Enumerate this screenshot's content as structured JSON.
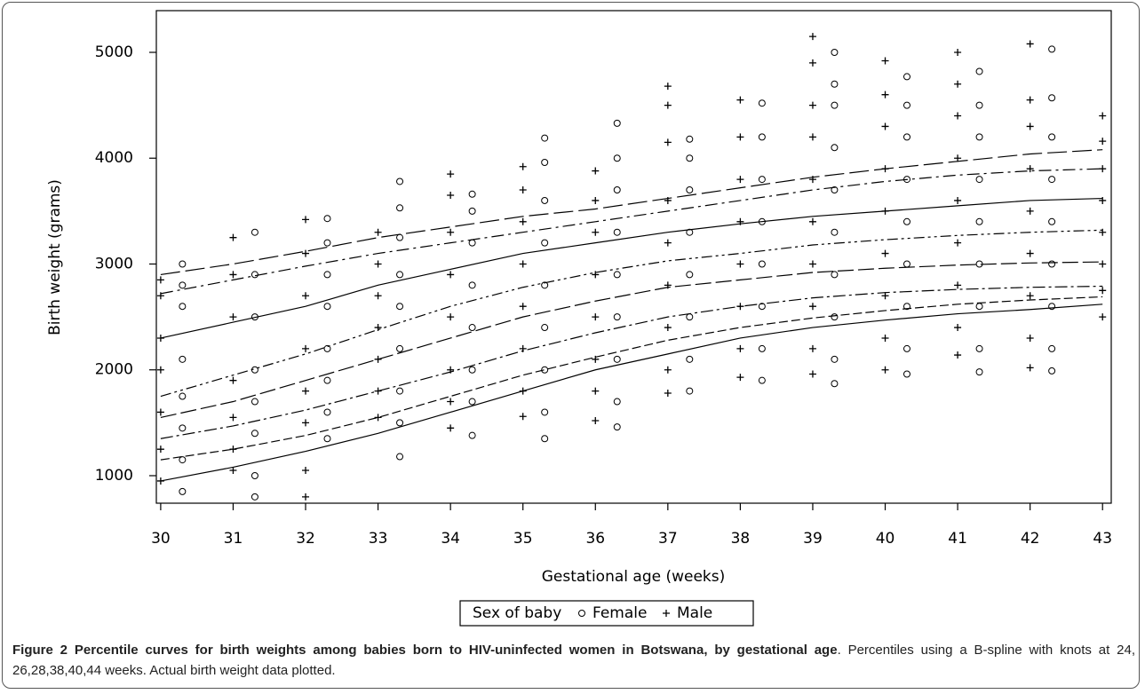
{
  "chart_data": {
    "type": "scatter",
    "y_label": "Birth weight (grams)",
    "x_label": "Gestational age (weeks)",
    "xlim": [
      29.94,
      43.12
    ],
    "ylim": [
      740,
      5394
    ],
    "xticks": [
      30,
      31,
      32,
      33,
      34,
      35,
      36,
      37,
      38,
      39,
      40,
      41,
      42,
      43
    ],
    "yticks": [
      1000,
      2000,
      3000,
      4000,
      5000
    ],
    "legend_title": "Sex of baby",
    "series": [
      {
        "name": "Female",
        "marker": "circle",
        "color": "#000000",
        "groups": [
          {
            "x": 30.3,
            "values": [
              850,
              1150,
              1450,
              1750,
              2100,
              2600,
              2800,
              3000
            ]
          },
          {
            "x": 31.3,
            "values": [
              800,
              1000,
              1400,
              1700,
              2000,
              2500,
              2900,
              3300
            ]
          },
          {
            "x": 32.3,
            "values": [
              1350,
              1600,
              1900,
              2200,
              2600,
              2900,
              3200,
              3430
            ]
          },
          {
            "x": 33.3,
            "values": [
              1180,
              1500,
              1800,
              2200,
              2600,
              2900,
              3250,
              3530,
              3780
            ]
          },
          {
            "x": 34.3,
            "values": [
              1380,
              1700,
              2000,
              2400,
              2800,
              3200,
              3500,
              3660
            ]
          },
          {
            "x": 35.3,
            "values": [
              1350,
              1600,
              2000,
              2400,
              2800,
              3200,
              3600,
              3960,
              4190
            ]
          },
          {
            "x": 36.3,
            "values": [
              1460,
              1700,
              2100,
              2500,
              2900,
              3300,
              3700,
              4000,
              4330
            ]
          },
          {
            "x": 37.3,
            "values": [
              1800,
              2100,
              2500,
              2900,
              3300,
              3700,
              4000,
              4180
            ]
          },
          {
            "x": 38.3,
            "values": [
              1900,
              2200,
              2600,
              3000,
              3400,
              3800,
              4200,
              4520
            ]
          },
          {
            "x": 39.3,
            "values": [
              1870,
              2100,
              2500,
              2900,
              3300,
              3700,
              4100,
              4500,
              4700,
              5000
            ]
          },
          {
            "x": 40.3,
            "values": [
              1960,
              2200,
              2600,
              3000,
              3400,
              3800,
              4200,
              4500,
              4770
            ]
          },
          {
            "x": 41.3,
            "values": [
              1980,
              2200,
              2600,
              3000,
              3400,
              3800,
              4200,
              4500,
              4820
            ]
          },
          {
            "x": 42.3,
            "values": [
              1990,
              2200,
              2600,
              3000,
              3400,
              3800,
              4200,
              4570,
              5030
            ]
          }
        ]
      },
      {
        "name": "Male",
        "marker": "plus",
        "color": "#000000",
        "groups": [
          {
            "x": 30,
            "values": [
              950,
              1250,
              1600,
              2000,
              2300,
              2700,
              2850
            ]
          },
          {
            "x": 31,
            "values": [
              1050,
              1250,
              1550,
              1900,
              2500,
              2900,
              3250
            ]
          },
          {
            "x": 32,
            "values": [
              800,
              1050,
              1500,
              1800,
              2200,
              2700,
              3100,
              3420
            ]
          },
          {
            "x": 33,
            "values": [
              1550,
              1800,
              2100,
              2400,
              2700,
              3000,
              3300
            ]
          },
          {
            "x": 34,
            "values": [
              1450,
              1700,
              2000,
              2500,
              2900,
              3300,
              3650,
              3850
            ]
          },
          {
            "x": 35,
            "values": [
              1560,
              1800,
              2200,
              2600,
              3000,
              3400,
              3700,
              3920
            ]
          },
          {
            "x": 36,
            "values": [
              1520,
              1800,
              2100,
              2500,
              2900,
              3300,
              3600,
              3880
            ]
          },
          {
            "x": 37,
            "values": [
              1780,
              2000,
              2400,
              2800,
              3200,
              3600,
              4150,
              4500,
              4680
            ]
          },
          {
            "x": 38,
            "values": [
              1930,
              2200,
              2600,
              3000,
              3400,
              3800,
              4200,
              4550
            ]
          },
          {
            "x": 39,
            "values": [
              1960,
              2200,
              2600,
              3000,
              3400,
              3800,
              4200,
              4500,
              4900,
              5150
            ]
          },
          {
            "x": 40,
            "values": [
              2000,
              2300,
              2700,
              3100,
              3500,
              3900,
              4300,
              4600,
              4920
            ]
          },
          {
            "x": 41,
            "values": [
              2140,
              2400,
              2800,
              3200,
              3600,
              4000,
              4400,
              4700,
              5000
            ]
          },
          {
            "x": 42,
            "values": [
              2020,
              2300,
              2700,
              3100,
              3500,
              3900,
              4300,
              4550,
              5080
            ]
          },
          {
            "x": 43,
            "values": [
              2500,
              2750,
              3000,
              3300,
              3600,
              3900,
              4160,
              4400
            ]
          }
        ]
      }
    ],
    "curve_x": [
      30,
      31,
      32,
      33,
      34,
      35,
      36,
      37,
      38,
      39,
      40,
      41,
      42,
      43
    ],
    "curves": [
      {
        "values": [
          950,
          1080,
          1230,
          1400,
          1600,
          1800,
          2000,
          2150,
          2300,
          2400,
          2470,
          2530,
          2570,
          2620
        ]
      },
      {
        "values": [
          1150,
          1250,
          1380,
          1550,
          1750,
          1950,
          2120,
          2280,
          2400,
          2490,
          2560,
          2620,
          2660,
          2690
        ]
      },
      {
        "values": [
          1350,
          1470,
          1620,
          1800,
          1980,
          2180,
          2350,
          2500,
          2600,
          2680,
          2730,
          2760,
          2780,
          2790
        ]
      },
      {
        "values": [
          1550,
          1700,
          1900,
          2100,
          2300,
          2500,
          2650,
          2780,
          2850,
          2920,
          2960,
          2990,
          3010,
          3020
        ]
      },
      {
        "values": [
          1750,
          1950,
          2150,
          2380,
          2600,
          2780,
          2920,
          3030,
          3100,
          3180,
          3230,
          3270,
          3300,
          3320
        ]
      },
      {
        "values": [
          2300,
          2450,
          2600,
          2800,
          2950,
          3100,
          3200,
          3300,
          3380,
          3450,
          3500,
          3550,
          3600,
          3620
        ]
      },
      {
        "values": [
          2720,
          2850,
          2980,
          3100,
          3200,
          3300,
          3400,
          3500,
          3600,
          3700,
          3780,
          3840,
          3880,
          3900
        ]
      },
      {
        "values": [
          2900,
          3000,
          3120,
          3250,
          3350,
          3450,
          3520,
          3620,
          3720,
          3820,
          3900,
          3970,
          4040,
          4080
        ]
      }
    ],
    "caption": {
      "label": "Figure 2",
      "title": "Percentile curves for birth weights among babies born to HIV-uninfected women in Botswana, by gestational age",
      "text": ". Percentiles using a B-spline with knots at 24, 26,28,38,40,44 weeks. Actual birth weight data plotted."
    }
  }
}
